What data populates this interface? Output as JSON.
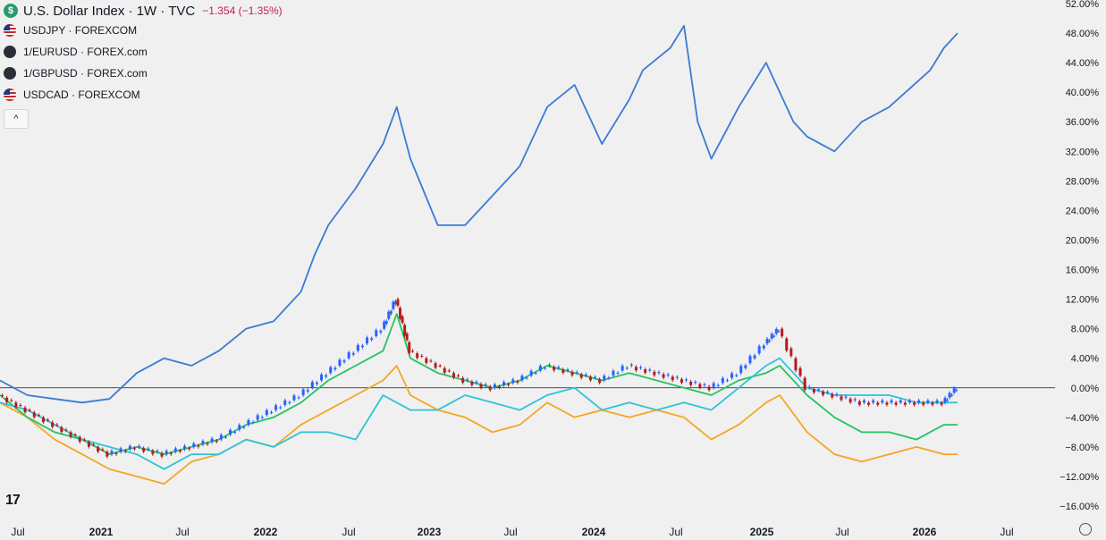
{
  "header": {
    "main_title": "U.S. Dollar Index · 1W · TVC",
    "main_change": "−1.354 (−1.35%)",
    "badge": "$",
    "collapse_glyph": "^"
  },
  "legend_items": [
    {
      "label": "USDJPY · FOREXCOM",
      "icon": "us-flag-icon",
      "color": "#3a7bd5"
    },
    {
      "label": "1/EURUSD · FOREX.com",
      "icon": "dark-circle-icon",
      "color": "#f5a623"
    },
    {
      "label": "1/GBPUSD · FOREX.com",
      "icon": "dark-circle-icon",
      "color": "#22c55e"
    },
    {
      "label": "USDCAD · FOREXCOM",
      "icon": "us-flag-icon",
      "color": "#2ec4d6"
    }
  ],
  "logo_text": "17",
  "chart_data": {
    "type": "line",
    "y_unit": "%",
    "ylim": [
      -16,
      52
    ],
    "y_ticks": [
      "52.00%",
      "48.00%",
      "44.00%",
      "40.00%",
      "36.00%",
      "32.00%",
      "28.00%",
      "24.00%",
      "20.00%",
      "16.00%",
      "12.00%",
      "8.00%",
      "4.00%",
      "0.00%",
      "−4.00%",
      "−8.00%",
      "−12.00%",
      "−16.00%"
    ],
    "x_ticks": [
      "Jul",
      "2021",
      "Jul",
      "2022",
      "Jul",
      "2023",
      "Jul",
      "2024",
      "Jul",
      "2025",
      "Jul",
      "2026",
      "Jul"
    ],
    "zero_line": 0,
    "colors": {
      "up": "#2962ff",
      "down": "#b71c1c",
      "zero": "#131722",
      "grid": "none"
    },
    "series": [
      {
        "name": "USDJPY · FOREXCOM",
        "color": "#3a7bd5",
        "x": [
          "2020-05",
          "2020-07",
          "2020-09",
          "2020-11",
          "2021-01",
          "2021-03",
          "2021-05",
          "2021-07",
          "2021-09",
          "2021-11",
          "2022-01",
          "2022-03",
          "2022-04",
          "2022-05",
          "2022-07",
          "2022-09",
          "2022-10",
          "2022-11",
          "2023-01",
          "2023-03",
          "2023-05",
          "2023-07",
          "2023-09",
          "2023-11",
          "2024-01",
          "2024-03",
          "2024-04",
          "2024-06",
          "2024-07",
          "2024-08",
          "2024-09",
          "2024-11",
          "2025-01",
          "2025-03",
          "2025-04",
          "2025-06",
          "2025-08",
          "2025-10",
          "2026-01",
          "2026-02",
          "2026-03"
        ],
        "values": [
          1,
          -1,
          -1.5,
          -2,
          -1.5,
          2,
          4,
          3,
          5,
          8,
          9,
          13,
          18,
          22,
          27,
          33,
          38,
          31,
          22,
          22,
          26,
          30,
          38,
          41,
          33,
          39,
          43,
          46,
          49,
          36,
          31,
          38,
          44,
          36,
          34,
          32,
          36,
          38,
          43,
          46,
          48
        ]
      },
      {
        "name": "1/EURUSD · FOREX.com",
        "color": "#f5a623",
        "x": [
          "2020-05",
          "2020-07",
          "2020-09",
          "2020-11",
          "2021-01",
          "2021-03",
          "2021-05",
          "2021-07",
          "2021-09",
          "2021-11",
          "2022-01",
          "2022-03",
          "2022-05",
          "2022-07",
          "2022-09",
          "2022-10",
          "2022-11",
          "2023-01",
          "2023-03",
          "2023-05",
          "2023-07",
          "2023-09",
          "2023-11",
          "2024-01",
          "2024-03",
          "2024-05",
          "2024-07",
          "2024-09",
          "2024-11",
          "2025-01",
          "2025-02",
          "2025-04",
          "2025-06",
          "2025-08",
          "2025-10",
          "2025-12",
          "2026-02",
          "2026-03"
        ],
        "values": [
          -2,
          -4,
          -7,
          -9,
          -11,
          -12,
          -13,
          -10,
          -9,
          -7,
          -8,
          -5,
          -3,
          -1,
          1,
          3,
          -1,
          -3,
          -4,
          -6,
          -5,
          -2,
          -4,
          -3,
          -4,
          -3,
          -4,
          -7,
          -5,
          -2,
          -1,
          -6,
          -9,
          -10,
          -9,
          -8,
          -9,
          -9
        ]
      },
      {
        "name": "1/GBPUSD · FOREX.com",
        "color": "#22c55e",
        "x": [
          "2020-05",
          "2020-07",
          "2020-09",
          "2020-11",
          "2021-01",
          "2021-03",
          "2021-05",
          "2021-07",
          "2021-09",
          "2021-11",
          "2022-01",
          "2022-03",
          "2022-05",
          "2022-07",
          "2022-09",
          "2022-10",
          "2022-11",
          "2023-01",
          "2023-03",
          "2023-05",
          "2023-07",
          "2023-09",
          "2023-11",
          "2024-01",
          "2024-03",
          "2024-05",
          "2024-07",
          "2024-09",
          "2024-11",
          "2025-01",
          "2025-02",
          "2025-04",
          "2025-06",
          "2025-08",
          "2025-10",
          "2025-12",
          "2026-02",
          "2026-03"
        ],
        "values": [
          -1,
          -4,
          -6,
          -7,
          -9,
          -8,
          -9,
          -8,
          -7,
          -5,
          -4,
          -2,
          1,
          3,
          5,
          10,
          4,
          2,
          1,
          0,
          1,
          3,
          2,
          1,
          2,
          1,
          0,
          -1,
          1,
          2,
          3,
          -1,
          -4,
          -6,
          -6,
          -7,
          -5,
          -5
        ]
      },
      {
        "name": "USDCAD · FOREXCOM",
        "color": "#2ec4d6",
        "x": [
          "2020-05",
          "2020-07",
          "2020-09",
          "2020-11",
          "2021-01",
          "2021-03",
          "2021-05",
          "2021-07",
          "2021-09",
          "2021-11",
          "2022-01",
          "2022-03",
          "2022-05",
          "2022-07",
          "2022-09",
          "2022-10",
          "2022-11",
          "2023-01",
          "2023-03",
          "2023-05",
          "2023-07",
          "2023-09",
          "2023-11",
          "2024-01",
          "2024-03",
          "2024-05",
          "2024-07",
          "2024-09",
          "2024-11",
          "2025-01",
          "2025-02",
          "2025-04",
          "2025-06",
          "2025-08",
          "2025-10",
          "2025-12",
          "2026-02",
          "2026-03"
        ],
        "values": [
          -2,
          -3,
          -5,
          -7,
          -8,
          -9,
          -11,
          -9,
          -9,
          -7,
          -8,
          -6,
          -6,
          -7,
          -1,
          -2,
          -3,
          -3,
          -1,
          -2,
          -3,
          -1,
          0,
          -3,
          -2,
          -3,
          -2,
          -3,
          0,
          3,
          4,
          0,
          -1,
          -1,
          -1,
          -2,
          -2,
          -2
        ]
      }
    ],
    "candles": {
      "name": "U.S. Dollar Index",
      "x": [
        "2020-05",
        "2020-07",
        "2020-09",
        "2020-11",
        "2021-01",
        "2021-03",
        "2021-05",
        "2021-07",
        "2021-09",
        "2021-11",
        "2022-01",
        "2022-03",
        "2022-05",
        "2022-07",
        "2022-09",
        "2022-10",
        "2022-11",
        "2023-01",
        "2023-03",
        "2023-05",
        "2023-07",
        "2023-09",
        "2023-11",
        "2024-01",
        "2024-03",
        "2024-05",
        "2024-07",
        "2024-09",
        "2024-11",
        "2025-01",
        "2025-02",
        "2025-04",
        "2025-06",
        "2025-08",
        "2025-10",
        "2025-12",
        "2026-02",
        "2026-03"
      ],
      "values": [
        -1,
        -3,
        -5,
        -7,
        -9,
        -8,
        -9,
        -8,
        -7,
        -5,
        -3,
        -1,
        2,
        5,
        8,
        12,
        5,
        3,
        1,
        0,
        1,
        3,
        2,
        1,
        3,
        2,
        1,
        0,
        2,
        6,
        8,
        0,
        -1,
        -2,
        -2,
        -2,
        -2,
        0
      ]
    }
  }
}
